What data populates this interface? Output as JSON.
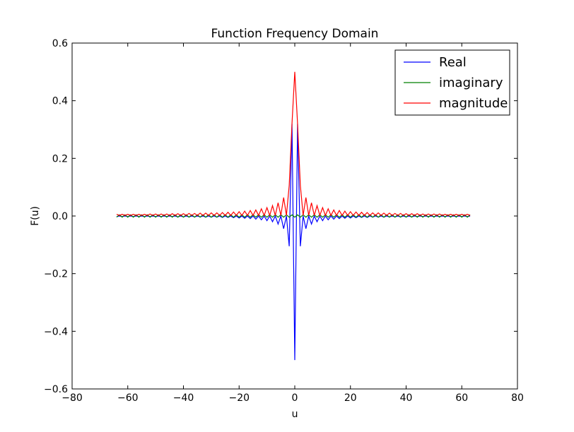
{
  "chart_data": {
    "type": "line",
    "title": "Function Frequency Domain",
    "xlabel": "u",
    "ylabel": "F(u)",
    "xlim": [
      -80,
      80
    ],
    "ylim": [
      -0.6,
      0.6
    ],
    "xticks": [
      "−80",
      "−60",
      "−40",
      "−20",
      "0",
      "20",
      "40",
      "60",
      "80"
    ],
    "yticks": [
      "−0.6",
      "−0.4",
      "−0.2",
      "0.0",
      "0.2",
      "0.4",
      "0.6"
    ],
    "xtick_values": [
      -80,
      -60,
      -40,
      -20,
      0,
      20,
      40,
      60,
      80
    ],
    "ytick_values": [
      -0.6,
      -0.4,
      -0.2,
      0.0,
      0.2,
      0.4,
      0.6
    ],
    "grid": false,
    "legend_position": "top-right",
    "x": {
      "start": -64,
      "end": 63,
      "step": 1
    },
    "series": [
      {
        "name": "Real",
        "color": "#0000ff",
        "model": "real",
        "center": -0.5,
        "peak": 0.32,
        "sidelobes": [
          -0.105,
          -0.044,
          -0.028,
          -0.02,
          -0.016,
          -0.013,
          -0.011,
          -0.009,
          -0.008,
          -0.007,
          -0.006,
          -0.005,
          -0.005,
          -0.004,
          -0.004,
          -0.004,
          -0.003,
          -0.003,
          -0.003,
          -0.003,
          -0.003,
          -0.002,
          -0.002,
          -0.002,
          -0.002,
          -0.002,
          -0.002,
          -0.002,
          -0.002,
          -0.002,
          -0.002,
          -0.002
        ]
      },
      {
        "name": "imaginary",
        "color": "#008000",
        "model": "imag",
        "amplitude": 0.007
      },
      {
        "name": "magnitude",
        "color": "#ff0000",
        "model": "magnitude",
        "center": 0.5,
        "peak": 0.32,
        "sidelobes": [
          0.106,
          0.064,
          0.046,
          0.036,
          0.029,
          0.025,
          0.021,
          0.019,
          0.017,
          0.015,
          0.014,
          0.013,
          0.012,
          0.011,
          0.011,
          0.01,
          0.01,
          0.009,
          0.009,
          0.008,
          0.008,
          0.008,
          0.007,
          0.007,
          0.007,
          0.007,
          0.006,
          0.006,
          0.006,
          0.006,
          0.006,
          0.006
        ]
      }
    ]
  }
}
